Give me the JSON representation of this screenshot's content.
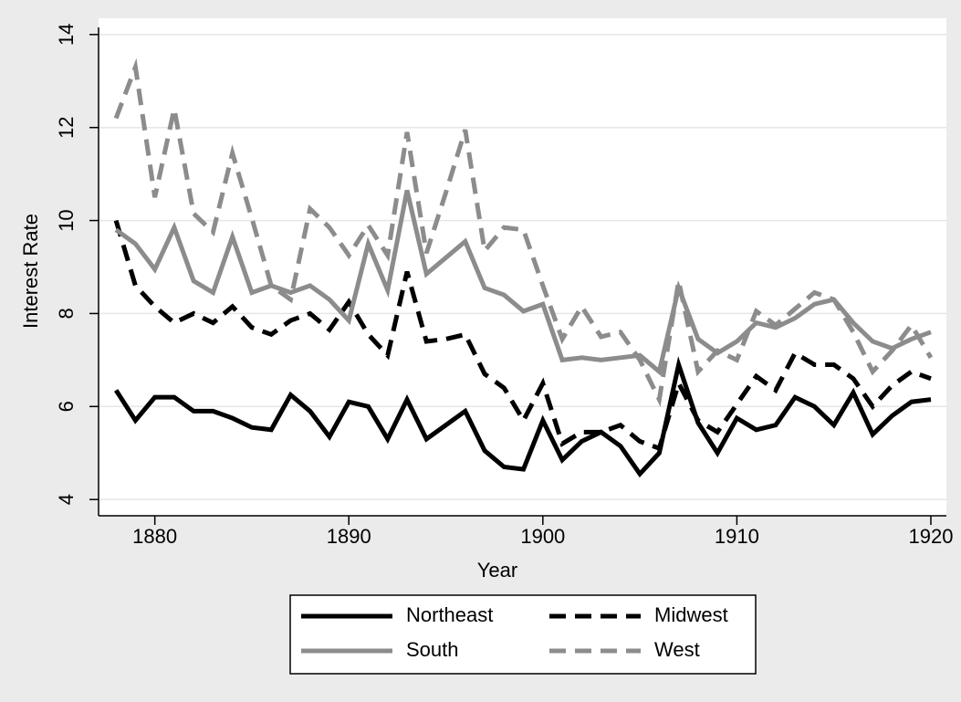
{
  "chart_data": {
    "type": "line",
    "x_label": "Year",
    "y_label": "Interest Rate",
    "x": [
      1878,
      1879,
      1880,
      1881,
      1882,
      1883,
      1884,
      1885,
      1886,
      1887,
      1888,
      1889,
      1890,
      1891,
      1892,
      1893,
      1894,
      1895,
      1896,
      1897,
      1898,
      1899,
      1900,
      1901,
      1902,
      1903,
      1904,
      1905,
      1906,
      1907,
      1908,
      1909,
      1910,
      1911,
      1912,
      1913,
      1914,
      1915,
      1916,
      1917,
      1918,
      1919,
      1920
    ],
    "series": [
      {
        "name": "Northeast",
        "color": "#000000",
        "style": "solid",
        "values": [
          6.35,
          5.7,
          6.2,
          6.2,
          5.9,
          5.9,
          5.75,
          5.55,
          5.5,
          6.25,
          5.9,
          5.35,
          6.1,
          6.0,
          5.3,
          6.15,
          5.3,
          5.6,
          5.9,
          5.05,
          4.7,
          4.65,
          5.7,
          4.85,
          5.25,
          5.45,
          5.15,
          4.55,
          5.0,
          6.9,
          5.65,
          5.0,
          5.75,
          5.5,
          5.6,
          6.2,
          6.0,
          5.6,
          6.3,
          5.4,
          5.8,
          6.1,
          6.15
        ]
      },
      {
        "name": "Midwest",
        "color": "#000000",
        "style": "dashed",
        "values": [
          10.0,
          8.6,
          8.15,
          7.8,
          8.0,
          7.8,
          8.15,
          7.7,
          7.55,
          7.85,
          8.0,
          7.65,
          8.25,
          7.55,
          7.1,
          8.9,
          7.4,
          7.45,
          7.55,
          6.7,
          6.4,
          5.7,
          6.5,
          5.2,
          5.45,
          5.45,
          5.6,
          5.25,
          5.1,
          6.5,
          5.7,
          5.45,
          6.05,
          6.65,
          6.35,
          7.15,
          6.9,
          6.9,
          6.6,
          6.0,
          6.45,
          6.75,
          6.6
        ]
      },
      {
        "name": "South",
        "color": "#8c8c8c",
        "style": "solid",
        "values": [
          9.8,
          9.5,
          8.95,
          9.85,
          8.7,
          8.45,
          9.65,
          8.45,
          8.6,
          8.45,
          8.6,
          8.3,
          7.85,
          9.5,
          8.5,
          10.65,
          8.85,
          9.2,
          9.55,
          8.55,
          8.4,
          8.05,
          8.2,
          7.0,
          7.05,
          7.0,
          7.05,
          7.1,
          6.75,
          8.55,
          7.45,
          7.15,
          7.4,
          7.8,
          7.7,
          7.9,
          8.2,
          8.3,
          7.8,
          7.4,
          7.25,
          7.45,
          7.6
        ]
      },
      {
        "name": "West",
        "color": "#8c8c8c",
        "style": "dashed",
        "values": [
          12.2,
          13.3,
          10.5,
          12.4,
          10.15,
          9.75,
          11.45,
          10.05,
          8.6,
          8.3,
          10.25,
          9.85,
          9.25,
          9.9,
          9.25,
          11.9,
          9.3,
          10.6,
          11.95,
          9.35,
          9.85,
          9.8,
          8.6,
          7.45,
          8.15,
          7.5,
          7.6,
          7.0,
          6.15,
          8.7,
          6.75,
          7.2,
          7.0,
          8.05,
          7.75,
          8.1,
          8.45,
          8.3,
          7.6,
          6.75,
          7.2,
          7.75,
          7.05
        ]
      }
    ],
    "xlim": [
      1877.1,
      1920.8
    ],
    "xticks": [
      1880,
      1890,
      1900,
      1910,
      1920
    ],
    "ylim": [
      3.65,
      14.35
    ],
    "yticks": [
      4,
      6,
      8,
      10,
      12,
      14
    ],
    "grid": true,
    "legend": "bottom"
  }
}
